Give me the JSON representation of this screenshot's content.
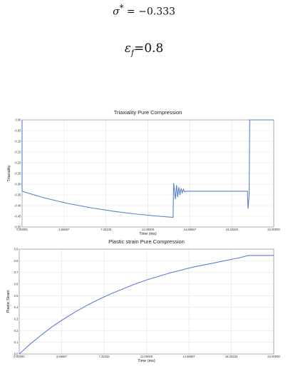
{
  "equations": {
    "sigma_lhs": "σ",
    "sigma_sup": "*",
    "sigma_rhs": " = −0.333",
    "eps_lhs": "ε",
    "eps_sub": "f",
    "eps_rhs": "=0.8"
  },
  "chart_data": [
    {
      "type": "line",
      "title": "Triaxiality Pure Compression",
      "xlabel": "Time (ms)",
      "ylabel": "Triaxiality",
      "xlim": [
        0,
        22
      ],
      "ylim": [
        -0.5,
        0
      ],
      "xticks": [
        "0.00000",
        "3.66667",
        "7.33333",
        "11.00000",
        "14.66667",
        "18.33333",
        "22.00000"
      ],
      "yticks": [
        "0.00",
        "-0.05",
        "-0.10",
        "-0.15",
        "-0.20",
        "-0.25",
        "-0.30",
        "-0.35",
        "-0.40",
        "-0.45",
        "-0.50"
      ],
      "grid": true,
      "color": "#5b7fd1",
      "series": [
        {
          "x": [
            0.0,
            0.0,
            0.0,
            0.1,
            2,
            4,
            6,
            8,
            10,
            12,
            13.2,
            13.25,
            13.4,
            13.5,
            13.6,
            13.7,
            13.8,
            13.9,
            14.0,
            14.1,
            14.2,
            14.4,
            19.7,
            19.75,
            19.85,
            19.9,
            20.0,
            22.0
          ],
          "y": [
            -0.3,
            0.0,
            -0.33,
            -0.335,
            -0.365,
            -0.39,
            -0.41,
            -0.427,
            -0.44,
            -0.45,
            -0.455,
            -0.295,
            -0.37,
            -0.305,
            -0.36,
            -0.315,
            -0.35,
            -0.32,
            -0.34,
            -0.325,
            -0.335,
            -0.333,
            -0.333,
            -0.415,
            -0.35,
            0.0,
            0.0,
            0.0
          ]
        }
      ]
    },
    {
      "type": "line",
      "title": "Plastic strain Pure Compression",
      "xlabel": "Time (ms)",
      "ylabel": "Plastic Strain",
      "xlim": [
        0,
        22
      ],
      "ylim": [
        0,
        0.9
      ],
      "xticks": [
        "0.00000",
        "3.66667",
        "7.33333",
        "11.00000",
        "14.66667",
        "18.33333",
        "22.00000"
      ],
      "yticks": [
        "0.9",
        "0.8",
        "0.7",
        "0.6",
        "0.5",
        "0.4",
        "0.3",
        "0.2",
        "0.1",
        "0.0"
      ],
      "grid": true,
      "color": "#5b7fd1",
      "series": [
        {
          "x": [
            0,
            1,
            2,
            3,
            4,
            5,
            6,
            7,
            8,
            9,
            10,
            11,
            12,
            13,
            14,
            15,
            16,
            17,
            18,
            19,
            19.8,
            22
          ],
          "y": [
            0.0,
            0.09,
            0.17,
            0.245,
            0.31,
            0.37,
            0.425,
            0.475,
            0.52,
            0.56,
            0.6,
            0.635,
            0.665,
            0.695,
            0.72,
            0.745,
            0.765,
            0.785,
            0.805,
            0.825,
            0.845,
            0.845
          ]
        }
      ]
    }
  ]
}
